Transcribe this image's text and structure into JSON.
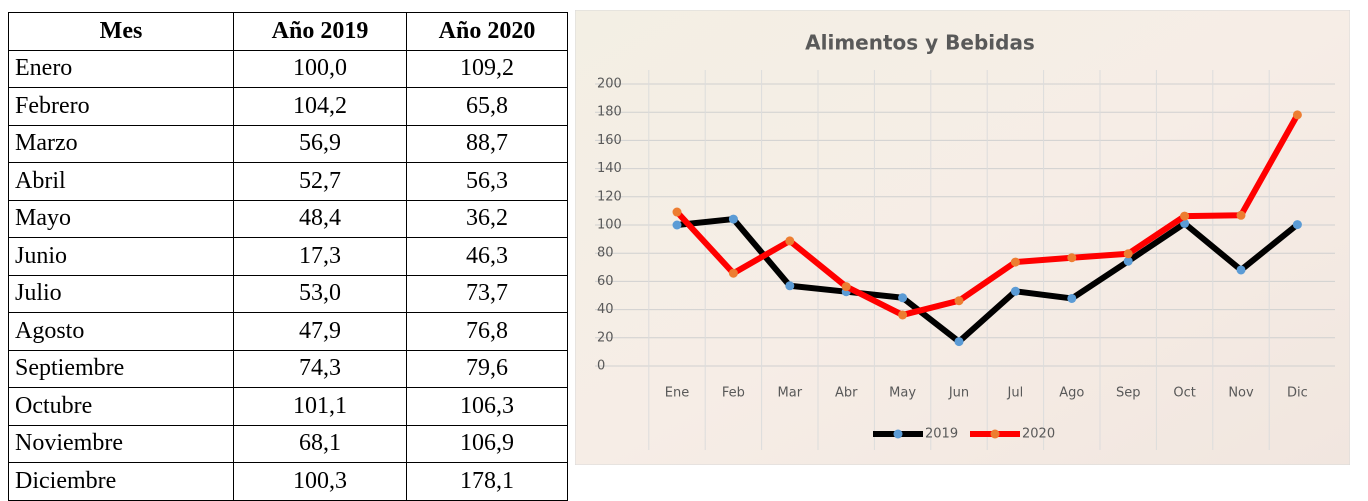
{
  "table": {
    "header": [
      "Mes",
      "Año 2019",
      "Año 2020"
    ],
    "rows": [
      [
        "Enero",
        "100,0",
        "109,2"
      ],
      [
        "Febrero",
        "104,2",
        "65,8"
      ],
      [
        "Marzo",
        "56,9",
        "88,7"
      ],
      [
        "Abril",
        "52,7",
        "56,3"
      ],
      [
        "Mayo",
        "48,4",
        "36,2"
      ],
      [
        "Junio",
        "17,3",
        "46,3"
      ],
      [
        "Julio",
        "53,0",
        "73,7"
      ],
      [
        "Agosto",
        "47,9",
        "76,8"
      ],
      [
        "Septiembre",
        "74,3",
        "79,6"
      ],
      [
        "Octubre",
        "101,1",
        "106,3"
      ],
      [
        "Noviembre",
        "68,1",
        "106,9"
      ],
      [
        "Diciembre",
        "100,3",
        "178,1"
      ]
    ]
  },
  "chart_data": {
    "type": "line",
    "title": "Alimentos y Bebidas",
    "categories": [
      "Ene",
      "Feb",
      "Mar",
      "Abr",
      "May",
      "Jun",
      "Jul",
      "Ago",
      "Sep",
      "Oct",
      "Nov",
      "Dic"
    ],
    "series": [
      {
        "name": "2019",
        "color": "#000000",
        "marker_color": "#5b9bd5",
        "values": [
          100.0,
          104.2,
          56.9,
          52.7,
          48.4,
          17.3,
          53.0,
          47.9,
          74.3,
          101.1,
          68.1,
          100.3
        ]
      },
      {
        "name": "2020",
        "color": "#ff0000",
        "marker_color": "#ed7d31",
        "values": [
          109.2,
          65.8,
          88.7,
          56.3,
          36.2,
          46.3,
          73.7,
          76.8,
          79.6,
          106.3,
          106.9,
          178.1
        ]
      }
    ],
    "ylim": [
      0,
      200
    ],
    "yticks": [
      0,
      20,
      40,
      60,
      80,
      100,
      120,
      140,
      160,
      180,
      200
    ],
    "grid": true,
    "legend": "bottom"
  }
}
